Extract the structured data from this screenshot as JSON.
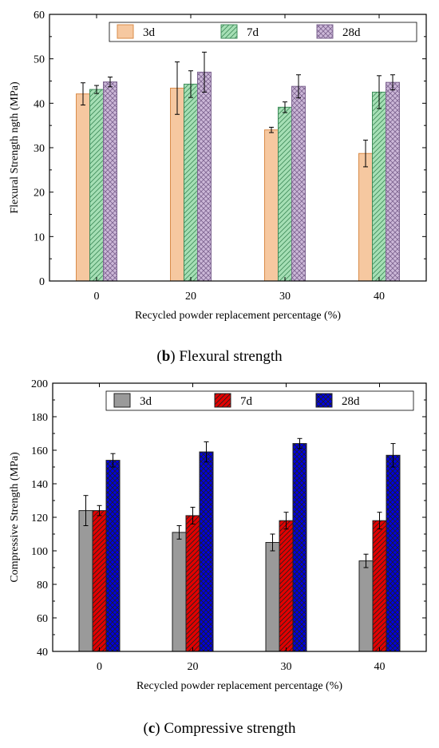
{
  "chart_data": [
    {
      "id": "b",
      "type": "bar",
      "caption_prefix": "(",
      "caption_letter": "b",
      "caption_text": ") Flexural strength",
      "categories": [
        "0",
        "20",
        "30",
        "40"
      ],
      "xlabel": "Recycled powder replacement percentage  (%)",
      "ylabel": "Flexural Strength ngth (MPa)",
      "ylim": [
        0,
        60
      ],
      "yticks": [
        "0",
        "10",
        "20",
        "30",
        "40",
        "50",
        "60"
      ],
      "legend_position": "top",
      "series": [
        {
          "name": "3d",
          "values": [
            42.1,
            43.4,
            34.0,
            28.7
          ],
          "errors": [
            2.5,
            5.9,
            0.6,
            3.0
          ],
          "color": "#f6c8a0",
          "edge": "#d98c4a",
          "pattern": "none"
        },
        {
          "name": "7d",
          "values": [
            43.1,
            44.3,
            39.1,
            42.5
          ],
          "errors": [
            0.9,
            3.0,
            1.2,
            3.7
          ],
          "color": "#a6dfb5",
          "edge": "#3f8c5a",
          "pattern": "diagonal"
        },
        {
          "name": "28d",
          "values": [
            44.8,
            47.0,
            43.8,
            44.7
          ],
          "errors": [
            1.1,
            4.5,
            2.6,
            1.7
          ],
          "color": "#ccb8d8",
          "edge": "#7d6490",
          "pattern": "crosshatch"
        }
      ]
    },
    {
      "id": "c",
      "type": "bar",
      "caption_prefix": "(",
      "caption_letter": "c",
      "caption_text": ") Compressive strength",
      "categories": [
        "0",
        "20",
        "30",
        "40"
      ],
      "xlabel": "Recycled powder replacement percentage  (%)",
      "ylabel": "Compressive Strength (MPa)",
      "ylim": [
        40,
        200
      ],
      "yticks": [
        "40",
        "60",
        "80",
        "100",
        "120",
        "140",
        "160",
        "180",
        "200"
      ],
      "legend_position": "top",
      "series": [
        {
          "name": "3d",
          "values": [
            124,
            111,
            105,
            94
          ],
          "errors": [
            9,
            4,
            5,
            4
          ],
          "color": "#9a9a9a",
          "edge": "#202020",
          "pattern": "none"
        },
        {
          "name": "7d",
          "values": [
            124,
            121,
            118,
            118
          ],
          "errors": [
            3,
            5,
            5,
            5
          ],
          "color": "#e30000",
          "edge": "#202020",
          "pattern": "diagonal"
        },
        {
          "name": "28d",
          "values": [
            154,
            159,
            164,
            157
          ],
          "errors": [
            4,
            6,
            3,
            7
          ],
          "color": "#0000e0",
          "edge": "#202020",
          "pattern": "crosshatch"
        }
      ]
    }
  ]
}
